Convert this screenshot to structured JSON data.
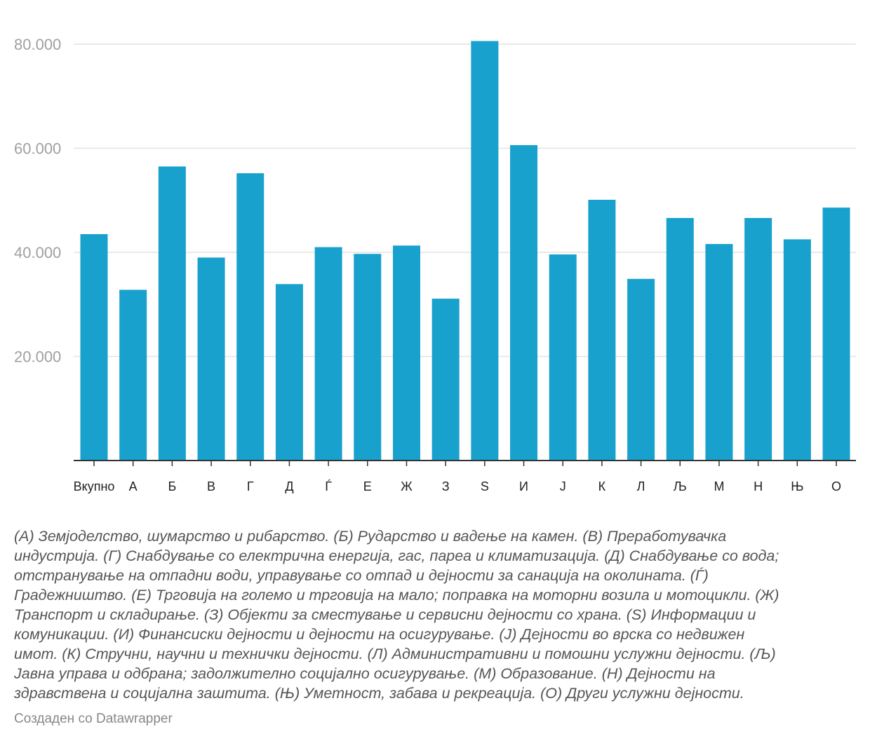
{
  "chart_data": {
    "type": "bar",
    "title": "",
    "xlabel": "",
    "ylabel": "",
    "ylim": [
      0,
      80000
    ],
    "yticks": [
      20000,
      40000,
      60000,
      80000
    ],
    "ytick_labels": [
      "20.000",
      "40.000",
      "60.000",
      "80.000"
    ],
    "grid": true,
    "bar_color": "#18a1cd",
    "categories": [
      "Вкупно",
      "А",
      "Б",
      "В",
      "Г",
      "Д",
      "Ѓ",
      "Е",
      "Ж",
      "З",
      "S",
      "И",
      "Ј",
      "К",
      "Л",
      "Љ",
      "М",
      "Н",
      "Њ",
      "О"
    ],
    "values": [
      43500,
      32800,
      56500,
      39000,
      55200,
      33900,
      41000,
      39700,
      41300,
      31100,
      80600,
      60600,
      39600,
      50100,
      34900,
      46600,
      41600,
      46600,
      42500,
      48600
    ]
  },
  "notes_lines": [
    "(А) Земјоделство, шумарство и рибарство. (Б) Рударство и вадење на камен. (В) Преработувачка",
    "индустрија. (Г) Снабдување со електрична енергија, гас, пареа и климатизација. (Д) Снабдување со вода;",
    "отстранување на отпадни води, управување со отпад и дејности за санација на околината. (Ѓ)",
    "Градежништво. (Е) Трговија на големо и трговија на мало; поправка на моторни возила и мотоцикли. (Ж)",
    "Транспорт и складирање. (З) Објекти за сместување и сервисни дејности со храна. (S) Информации и",
    "комуникации. (И) Финансиски дејности и дејности на осигурување. (Ј) Дејности во врска со недвижен",
    "имот. (К) Стручни, научни и технички дејности. (Л) Административни и помошни услужни дејности. (Љ)",
    "Јавна управа и одбрана; задолжително социјално осигурување. (М) Образование. (Н) Дејности на",
    "здравствена и социјална заштита. (Њ) Уметност, забава и рекреација. (О) Други услужни дејности."
  ],
  "credit": "Создаден со Datawrapper"
}
